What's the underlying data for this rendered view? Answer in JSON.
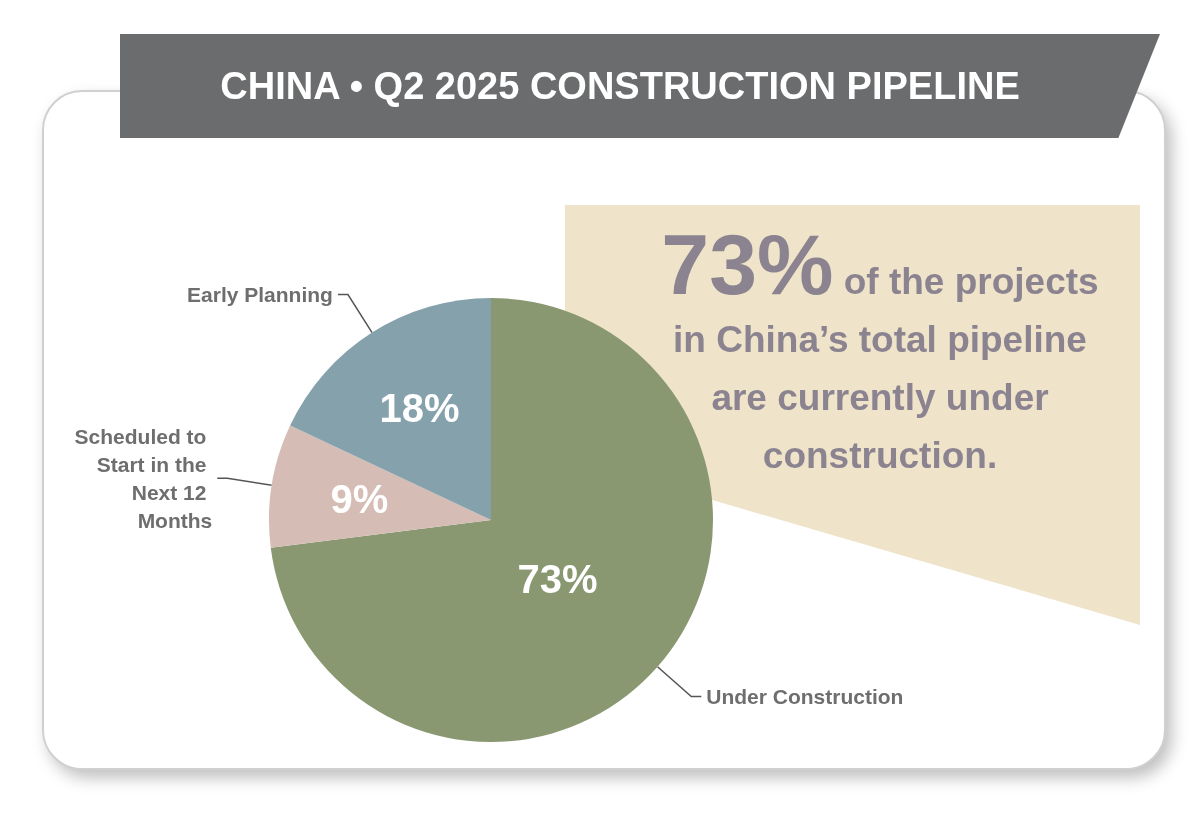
{
  "chart_data": {
    "type": "pie",
    "title": "CHINA • Q2 2025 CONSTRUCTION PIPELINE",
    "categories": [
      "Under Construction",
      "Scheduled to Start in the Next 12 Months",
      "Early Planning"
    ],
    "values": [
      73,
      9,
      18
    ],
    "colors": [
      "#8a9872",
      "#d5bdb6",
      "#84a1ac"
    ],
    "value_labels": [
      "73%",
      "9%",
      "18%"
    ],
    "annotations": [
      "73%",
      "of the projects in China’s total pipeline are currently under construction."
    ],
    "legend": false
  }
}
